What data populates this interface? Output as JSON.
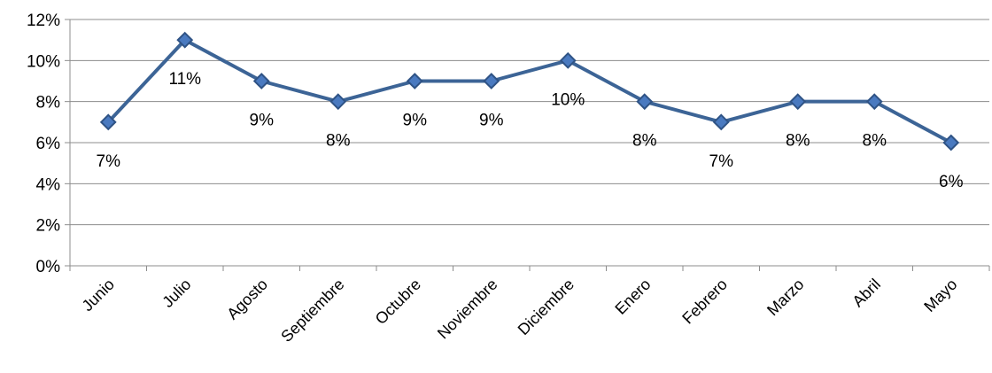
{
  "chart_data": {
    "type": "line",
    "title": "",
    "xlabel": "",
    "ylabel": "",
    "categories": [
      "Junio",
      "Julio",
      "Agosto",
      "Septiembre",
      "Octubre",
      "Noviembre",
      "Diciembre",
      "Enero",
      "Febrero",
      "Marzo",
      "Abril",
      "Mayo"
    ],
    "series": [
      {
        "values": [
          7,
          11,
          9,
          8,
          9,
          9,
          10,
          8,
          7,
          8,
          8,
          6
        ],
        "data_labels": [
          "7%",
          "11%",
          "9%",
          "8%",
          "9%",
          "9%",
          "10%",
          "8%",
          "7%",
          "8%",
          "8%",
          "6%"
        ],
        "color": "#3C6496",
        "marker": "diamond"
      }
    ],
    "ylim": [
      0,
      12
    ],
    "y_ticks": [
      0,
      2,
      4,
      6,
      8,
      10,
      12
    ],
    "y_tick_labels": [
      "0%",
      "2%",
      "4%",
      "6%",
      "8%",
      "10%",
      "12%"
    ],
    "grid": true,
    "legend": "none"
  }
}
